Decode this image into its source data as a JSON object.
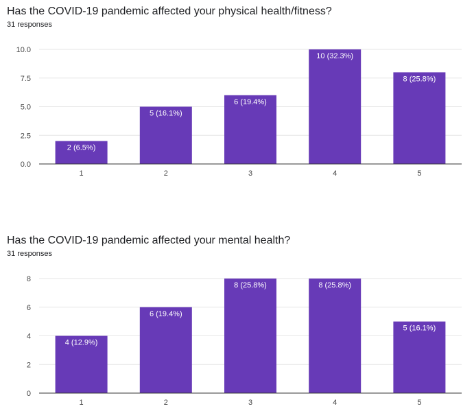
{
  "accent_color": "#673ab7",
  "questions": [
    {
      "title": "Has the COVID-19 pandemic affected your physical health/fitness?",
      "subtitle": "31 responses",
      "chart_data": {
        "type": "bar",
        "categories": [
          "1",
          "2",
          "3",
          "4",
          "5"
        ],
        "values": [
          2,
          5,
          6,
          10,
          8
        ],
        "data_labels": [
          "2 (6.5%)",
          "5 (16.1%)",
          "6 (19.4%)",
          "10 (32.3%)",
          "8 (25.8%)"
        ],
        "ylim": [
          0,
          10
        ],
        "yticks": [
          0,
          2.5,
          5,
          7.5,
          10
        ],
        "ytick_labels": [
          "0.0",
          "2.5",
          "5.0",
          "7.5",
          "10.0"
        ],
        "grid": true,
        "bar_color": "#673ab7"
      }
    },
    {
      "title": "Has the COVID-19 pandemic affected your mental health?",
      "subtitle": "31 responses",
      "chart_data": {
        "type": "bar",
        "categories": [
          "1",
          "2",
          "3",
          "4",
          "5"
        ],
        "values": [
          4,
          6,
          8,
          8,
          5
        ],
        "data_labels": [
          "4 (12.9%)",
          "6 (19.4%)",
          "8 (25.8%)",
          "8 (25.8%)",
          "5 (16.1%)"
        ],
        "ylim": [
          0,
          8
        ],
        "yticks": [
          0,
          2,
          4,
          6,
          8
        ],
        "ytick_labels": [
          "0",
          "2",
          "4",
          "6",
          "8"
        ],
        "grid": true,
        "bar_color": "#673ab7"
      }
    }
  ]
}
